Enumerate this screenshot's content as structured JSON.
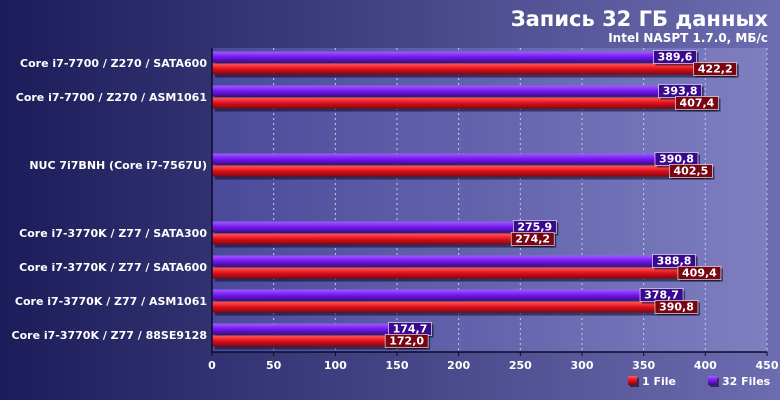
{
  "chart_data": {
    "type": "bar",
    "orientation": "horizontal",
    "title": "Запись 32 ГБ данных",
    "subtitle": "Intel NASPT 1.7.0, МБ/с",
    "categories": [
      "Core i7-7700 / Z270 / SATA600",
      "Core i7-7700 / Z270 / ASM1061",
      "NUC 7i7BNH (Core i7-7567U)",
      "Core i7-3770K / Z77 / SATA300",
      "Core i7-3770K / Z77 / SATA600",
      "Core i7-3770K / Z77 / ASM1061",
      "Core i7-3770K / Z77 / 88SE9128"
    ],
    "series": [
      {
        "name": "32 Files",
        "color": "#7a1cf0",
        "values": [
          389.6,
          393.8,
          390.8,
          275.9,
          388.8,
          378.7,
          174.7
        ],
        "labels": [
          "389,6",
          "393,8",
          "390,8",
          "275,9",
          "388,8",
          "378,7",
          "174,7"
        ]
      },
      {
        "name": "1 File",
        "color": "#e0101c",
        "values": [
          422.2,
          407.4,
          402.5,
          274.2,
          409.4,
          390.8,
          172.0
        ],
        "labels": [
          "422,2",
          "407,4",
          "402,5",
          "274,2",
          "409,4",
          "390,8",
          "172,0"
        ]
      }
    ],
    "legend_order": [
      "1 File",
      "32 Files"
    ],
    "legend_position": "bottom-right",
    "xlim": [
      0,
      450
    ],
    "xticks": [
      0,
      50,
      100,
      150,
      200,
      250,
      300,
      350,
      400,
      450
    ],
    "xtick_labels": [
      "0",
      "50",
      "100",
      "150",
      "200",
      "250",
      "300",
      "350",
      "400",
      "450"
    ],
    "grid": true,
    "background_color": "#1c1c5e",
    "plot_background_color": "#6a6ab0"
  }
}
